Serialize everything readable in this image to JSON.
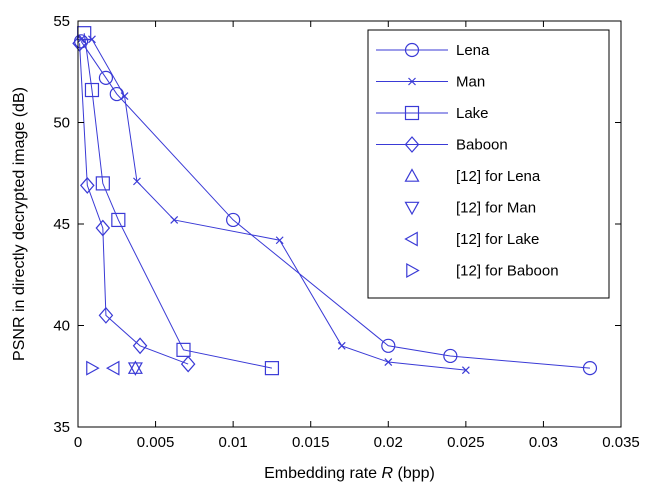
{
  "chart_data": {
    "type": "line",
    "xlabel": "Embedding rate R (bpp)",
    "xlabel_prefix": "Embedding rate ",
    "xlabel_italic": "R",
    "xlabel_suffix": " (bpp)",
    "ylabel": "PSNR in directly decrypted image (dB)",
    "xlim": [
      0,
      0.035
    ],
    "ylim": [
      35,
      55
    ],
    "xticks": [
      0,
      0.005,
      0.01,
      0.015,
      0.02,
      0.025,
      0.03,
      0.035
    ],
    "xtick_labels": [
      "0",
      "0.005",
      "0.01",
      "0.015",
      "0.02",
      "0.025",
      "0.03",
      "0.035"
    ],
    "yticks": [
      35,
      40,
      45,
      50,
      55
    ],
    "ytick_labels": [
      "35",
      "40",
      "45",
      "50",
      "55"
    ],
    "grid": false,
    "legend_position": "top-right",
    "color": "#3a3ad6",
    "series": [
      {
        "name": "Lena",
        "marker": "circle",
        "line": true,
        "x": [
          0.0002,
          0.0018,
          0.0025,
          0.01,
          0.02,
          0.024,
          0.033
        ],
        "y": [
          54.0,
          52.2,
          51.4,
          45.2,
          39.0,
          38.5,
          37.9
        ]
      },
      {
        "name": "Man",
        "marker": "x",
        "line": true,
        "x": [
          0.0002,
          0.0009,
          0.003,
          0.0038,
          0.0062,
          0.013,
          0.017,
          0.02,
          0.025
        ],
        "y": [
          54.1,
          54.1,
          51.3,
          47.1,
          45.2,
          44.2,
          39.0,
          38.2,
          37.8
        ]
      },
      {
        "name": "Lake",
        "marker": "square",
        "line": true,
        "x": [
          0.0004,
          0.0009,
          0.0016,
          0.0026,
          0.0068,
          0.0125
        ],
        "y": [
          54.4,
          51.6,
          47.0,
          45.2,
          38.8,
          37.9
        ]
      },
      {
        "name": "Baboon",
        "marker": "diamond",
        "line": true,
        "x": [
          0.0001,
          0.0006,
          0.0016,
          0.0018,
          0.004,
          0.0071
        ],
        "y": [
          53.9,
          46.9,
          44.8,
          40.5,
          39.0,
          38.1
        ]
      },
      {
        "name": "[12] for Lena",
        "marker": "triangle-up",
        "line": false,
        "x": [
          0.0037
        ],
        "y": [
          37.9
        ]
      },
      {
        "name": "[12] for Man",
        "marker": "triangle-down",
        "line": false,
        "x": [
          0.0037
        ],
        "y": [
          37.9
        ]
      },
      {
        "name": "[12] for Lake",
        "marker": "triangle-left",
        "line": false,
        "x": [
          0.0023
        ],
        "y": [
          37.9
        ]
      },
      {
        "name": "[12] for Baboon",
        "marker": "triangle-right",
        "line": false,
        "x": [
          0.0009
        ],
        "y": [
          37.9
        ]
      }
    ]
  }
}
